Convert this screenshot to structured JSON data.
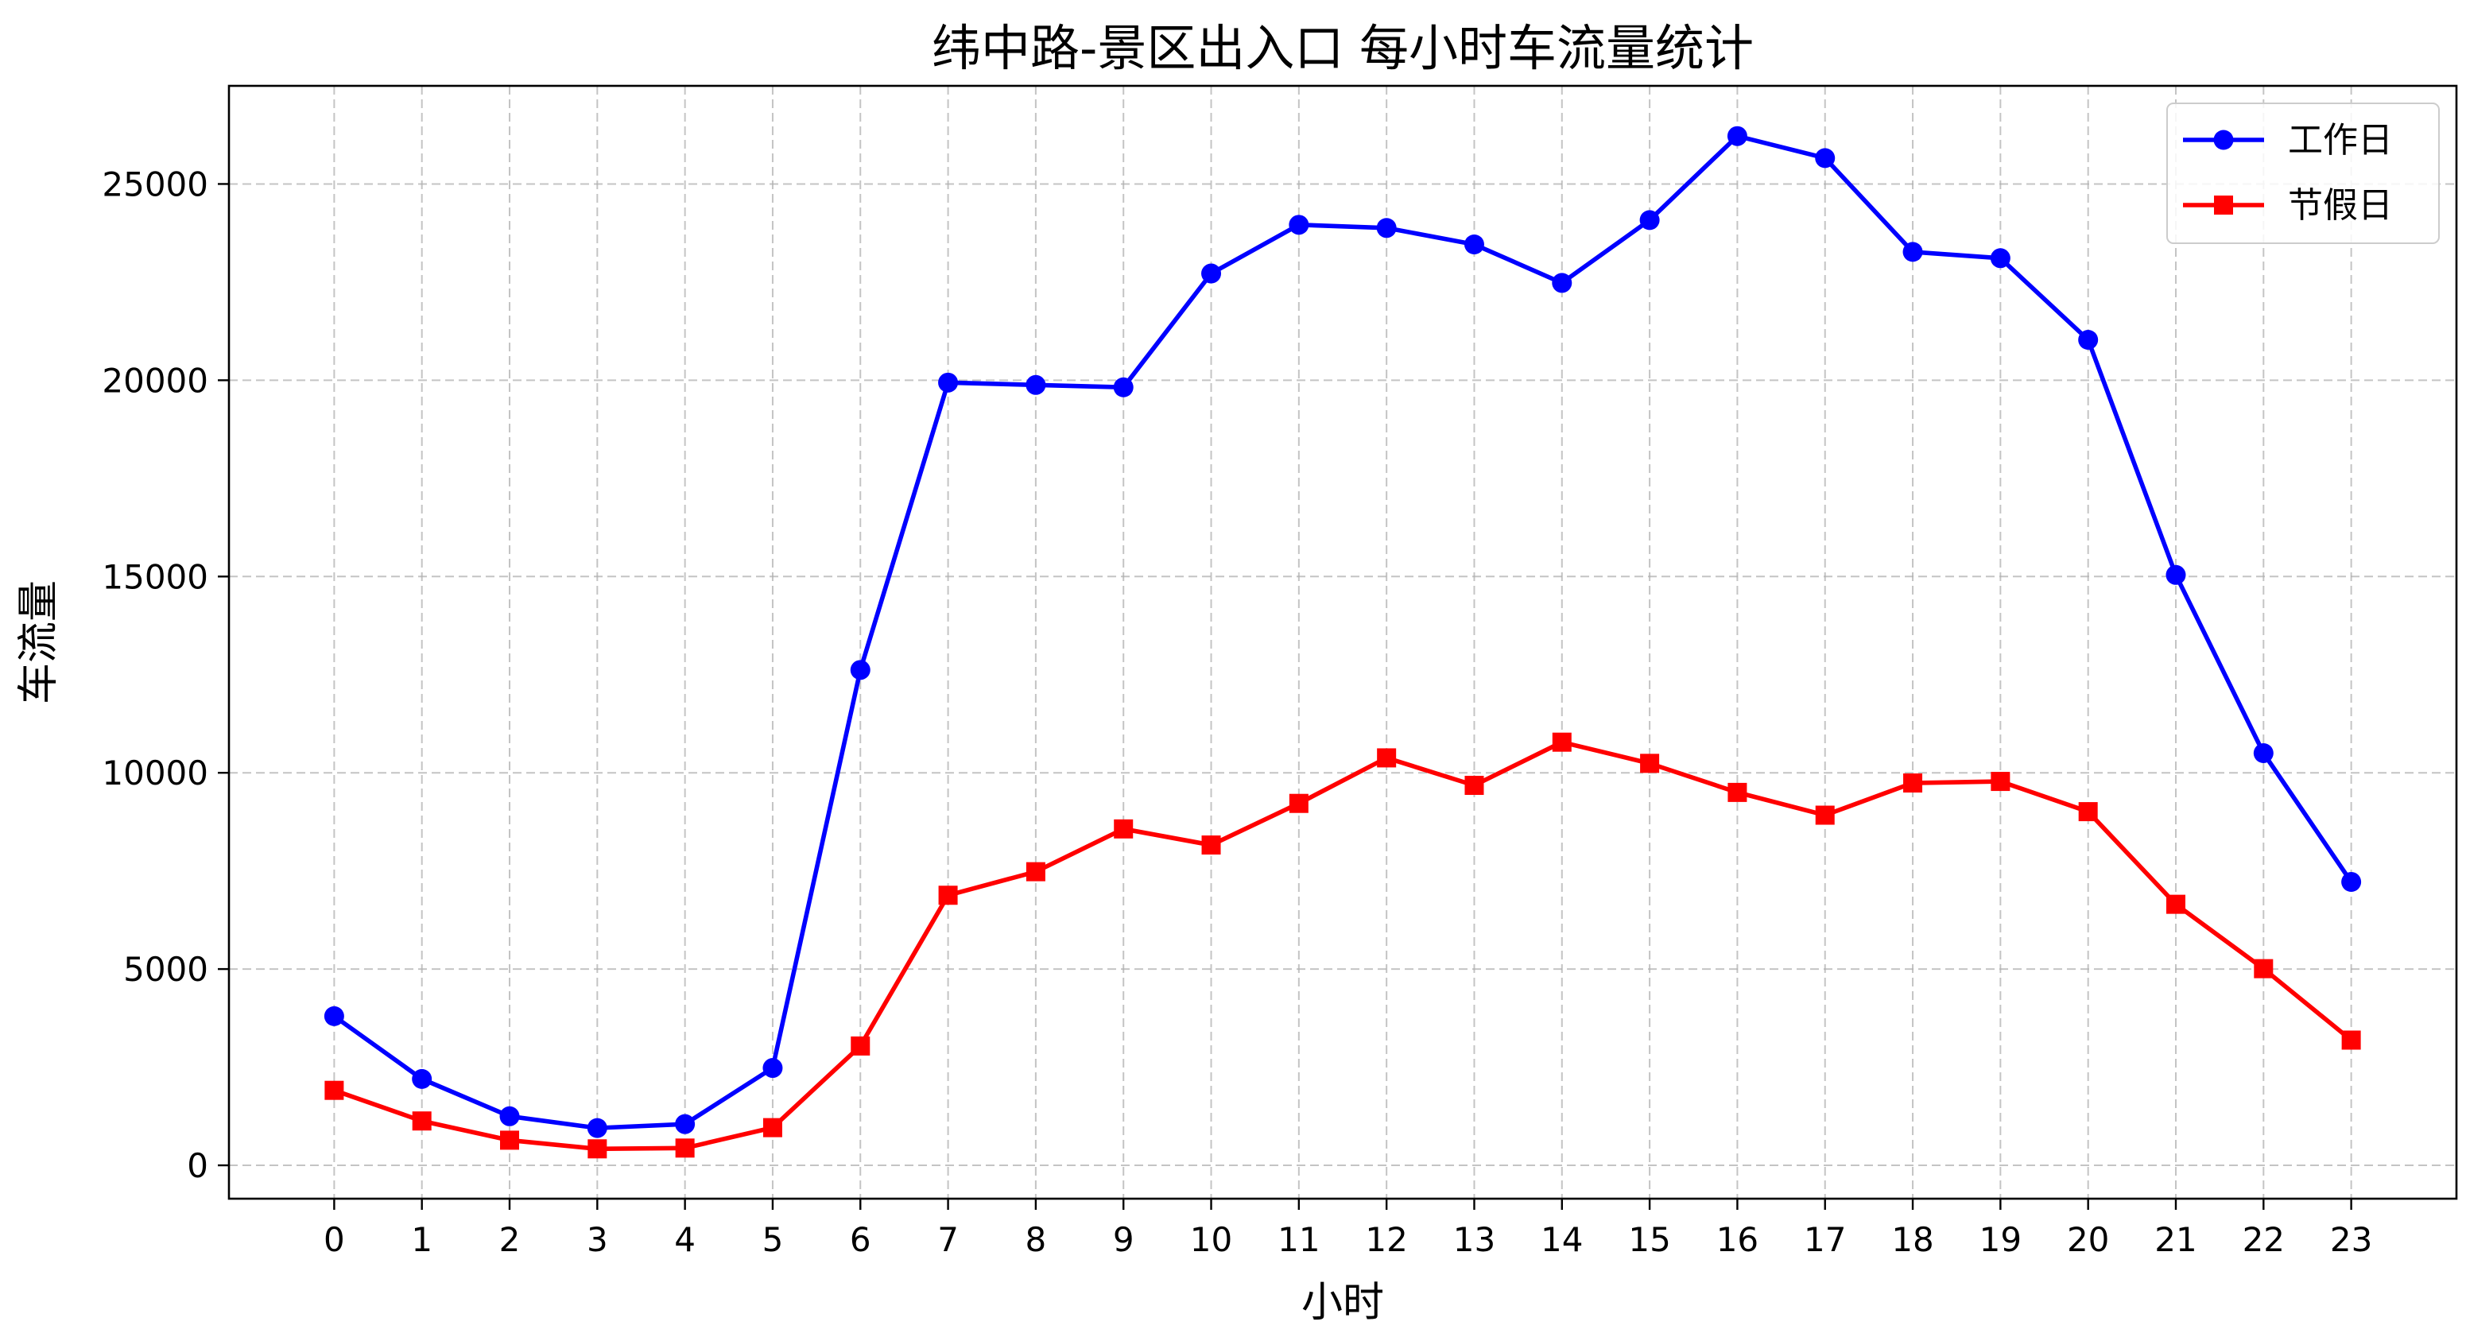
{
  "chart_data": {
    "type": "line",
    "title": "纬中路-景区出入口 每小时车流量统计",
    "xlabel": "小时",
    "ylabel": "车流量",
    "x": [
      0,
      1,
      2,
      3,
      4,
      5,
      6,
      7,
      8,
      9,
      10,
      11,
      12,
      13,
      14,
      15,
      16,
      17,
      18,
      19,
      20,
      21,
      22,
      23
    ],
    "xlim": [
      -1.2,
      24.2
    ],
    "ylim": [
      -850,
      27500
    ],
    "yticks": [
      0,
      5000,
      10000,
      15000,
      20000,
      25000
    ],
    "grid": true,
    "legend_position": "top-right",
    "series": [
      {
        "name": "工作日",
        "color": "#0000ff",
        "marker": "circle",
        "values": [
          3800,
          2200,
          1250,
          950,
          1050,
          2480,
          12620,
          19940,
          19880,
          19820,
          22720,
          23960,
          23880,
          23460,
          22480,
          24080,
          26220,
          25660,
          23270,
          23110,
          21030,
          15040,
          10500,
          7220
        ]
      },
      {
        "name": "节假日",
        "color": "#ff0000",
        "marker": "square",
        "values": [
          1910,
          1130,
          640,
          420,
          440,
          960,
          3040,
          6880,
          7480,
          8570,
          8160,
          9220,
          10380,
          9680,
          10780,
          10240,
          9500,
          8920,
          9740,
          9780,
          9010,
          6650,
          5010,
          3190
        ]
      }
    ]
  }
}
